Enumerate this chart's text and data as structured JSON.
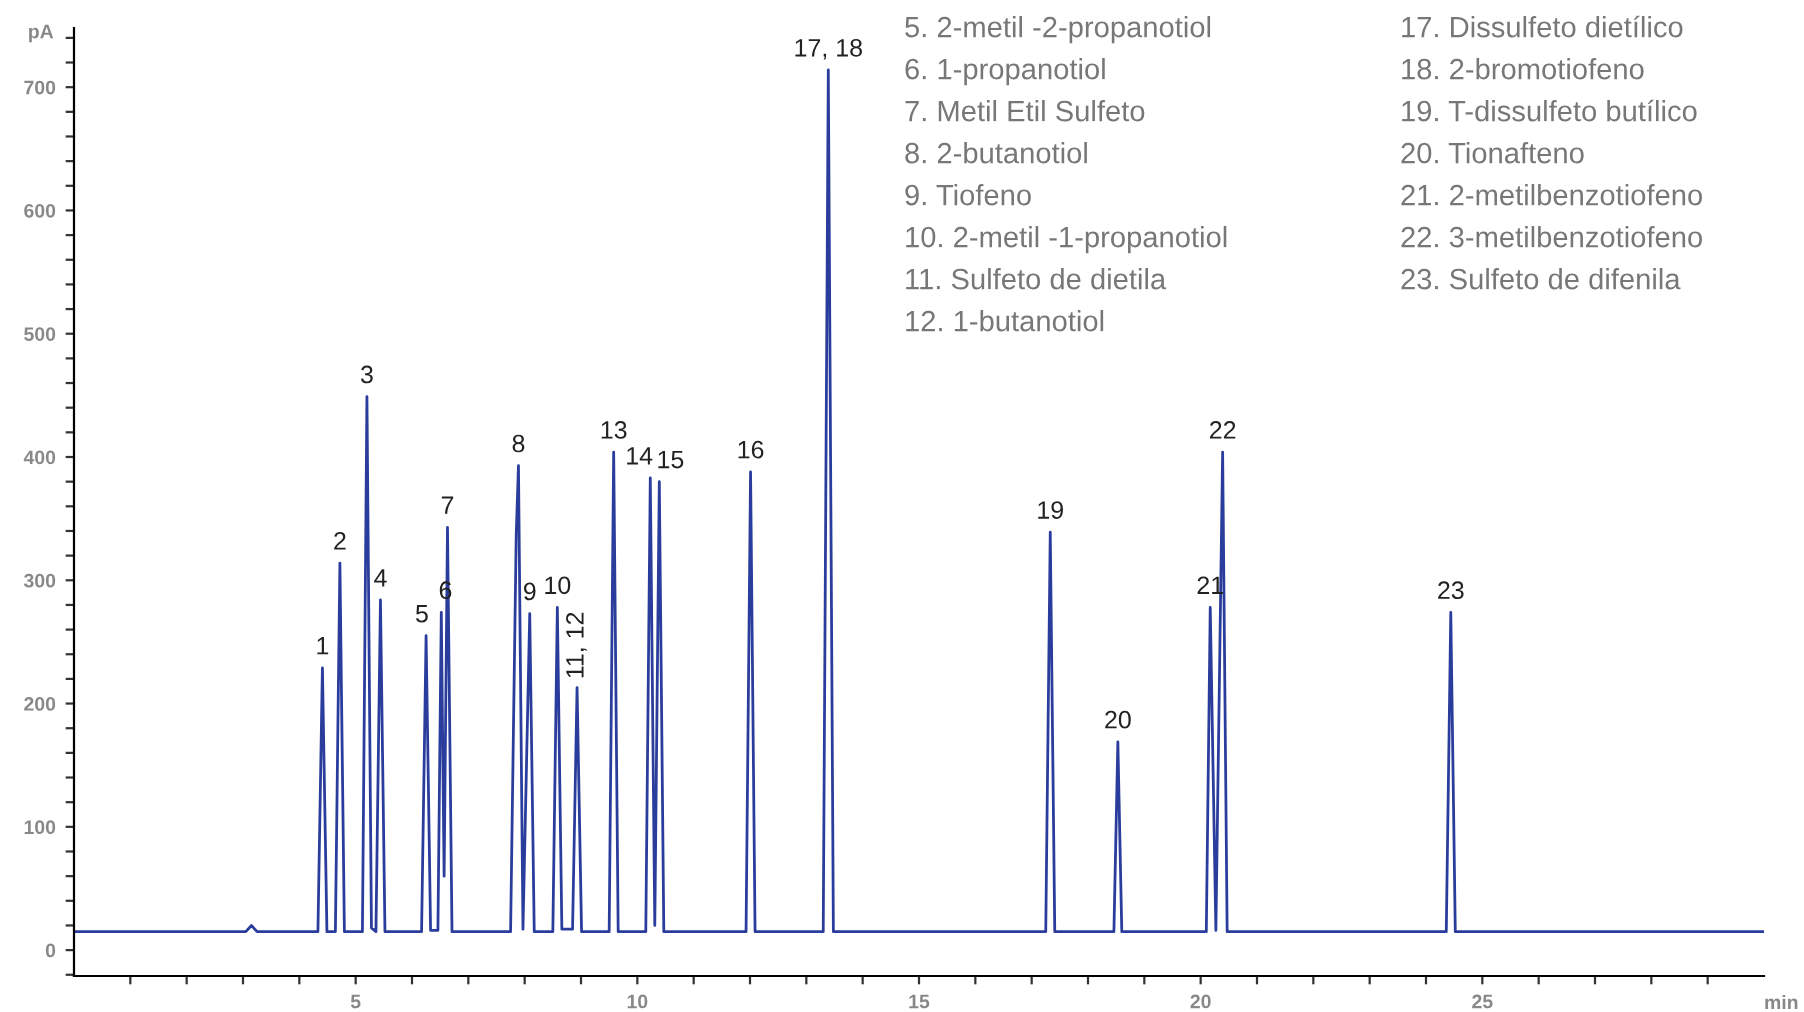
{
  "chart_data": {
    "type": "line",
    "xlabel": "min",
    "ylabel": "pA",
    "series": [
      {
        "color": "#2b3d9c",
        "x": [
          0.0,
          3.05,
          3.15,
          3.25,
          4.33,
          4.41,
          4.49,
          4.64,
          4.72,
          4.8,
          5.12,
          5.2,
          5.28,
          5.36,
          5.44,
          5.52,
          6.17,
          6.25,
          6.33,
          6.46,
          6.52,
          6.57,
          6.63,
          6.71,
          7.75,
          7.85,
          7.89,
          7.97,
          8.09,
          8.17,
          8.5,
          8.58,
          8.66,
          8.85,
          8.93,
          9.01,
          9.5,
          9.58,
          9.66,
          10.15,
          10.23,
          10.31,
          10.39,
          10.47,
          11.93,
          12.01,
          12.09,
          13.3,
          13.39,
          13.48,
          17.25,
          17.33,
          17.41,
          18.46,
          18.53,
          18.6,
          20.1,
          20.17,
          20.27,
          20.39,
          20.47,
          24.36,
          24.44,
          24.52,
          30.0
        ],
        "values": [
          15,
          15,
          20,
          15,
          15,
          229,
          15,
          15,
          314,
          15,
          15,
          449,
          18,
          15,
          284,
          15,
          15,
          255,
          16,
          16,
          274,
          60,
          343,
          15,
          15,
          337,
          393,
          17,
          273,
          15,
          15,
          278,
          17,
          17,
          213,
          15,
          15,
          404,
          15,
          15,
          383,
          20,
          380,
          15,
          15,
          388,
          15,
          15,
          714,
          15,
          15,
          339,
          15,
          15,
          169,
          15,
          15,
          278,
          16,
          404,
          15,
          15,
          274,
          15,
          15
        ]
      }
    ],
    "xlim": [
      0,
      30
    ],
    "xticks": [
      {
        "value": 1,
        "label": null
      },
      {
        "value": 2,
        "label": null
      },
      {
        "value": 3,
        "label": null
      },
      {
        "value": 4,
        "label": null
      },
      5,
      {
        "value": 6,
        "label": null
      },
      {
        "value": 7,
        "label": null
      },
      {
        "value": 8,
        "label": null
      },
      {
        "value": 9,
        "label": null
      },
      10,
      {
        "value": 11,
        "label": null
      },
      {
        "value": 12,
        "label": null
      },
      {
        "value": 13,
        "label": null
      },
      {
        "value": 14,
        "label": null
      },
      15,
      {
        "value": 16,
        "label": null
      },
      {
        "value": 17,
        "label": null
      },
      {
        "value": 18,
        "label": null
      },
      {
        "value": 19,
        "label": null
      },
      20,
      {
        "value": 21,
        "label": null
      },
      {
        "value": 22,
        "label": null
      },
      {
        "value": 23,
        "label": null
      },
      {
        "value": 24,
        "label": null
      },
      25,
      {
        "value": 26,
        "label": null
      },
      {
        "value": 27,
        "label": null
      },
      {
        "value": 28,
        "label": null
      },
      {
        "value": 29,
        "label": null
      }
    ],
    "ylim": [
      -21,
      748
    ],
    "yticks": [
      {
        "value": -20,
        "label": null
      },
      0,
      {
        "value": 20,
        "label": null
      },
      {
        "value": 40,
        "label": null
      },
      {
        "value": 60,
        "label": null
      },
      {
        "value": 80,
        "label": null
      },
      100,
      {
        "value": 120,
        "label": null
      },
      {
        "value": 140,
        "label": null
      },
      {
        "value": 160,
        "label": null
      },
      {
        "value": 180,
        "label": null
      },
      200,
      {
        "value": 220,
        "label": null
      },
      {
        "value": 240,
        "label": null
      },
      {
        "value": 260,
        "label": null
      },
      {
        "value": 280,
        "label": null
      },
      300,
      {
        "value": 320,
        "label": null
      },
      {
        "value": 340,
        "label": null
      },
      {
        "value": 360,
        "label": null
      },
      {
        "value": 380,
        "label": null
      },
      400,
      {
        "value": 420,
        "label": null
      },
      {
        "value": 440,
        "label": null
      },
      {
        "value": 460,
        "label": null
      },
      {
        "value": 480,
        "label": null
      },
      500,
      {
        "value": 520,
        "label": null
      },
      {
        "value": 540,
        "label": null
      },
      {
        "value": 560,
        "label": null
      },
      {
        "value": 580,
        "label": null
      },
      600,
      {
        "value": 620,
        "label": null
      },
      {
        "value": 640,
        "label": null
      },
      {
        "value": 660,
        "label": null
      },
      {
        "value": 680,
        "label": null
      },
      700,
      {
        "value": 720,
        "label": null
      },
      {
        "value": 740,
        "label": null
      }
    ],
    "grid": false,
    "legend": false,
    "annotations": [
      {
        "text": "1",
        "x": 4.41,
        "y": 229
      },
      {
        "text": "2",
        "x": 4.72,
        "y": 314
      },
      {
        "text": "3",
        "x": 5.2,
        "y": 449
      },
      {
        "text": "4",
        "x": 5.44,
        "y": 284
      },
      {
        "text": "5",
        "x": 6.25,
        "y": 255
      },
      {
        "text": "6",
        "x": 6.52,
        "y": 274
      },
      {
        "text": "7",
        "x": 6.63,
        "y": 343
      },
      {
        "text": "8",
        "x": 7.89,
        "y": 393
      },
      {
        "text": "9",
        "x": 8.09,
        "y": 273
      },
      {
        "text": "10",
        "x": 8.58,
        "y": 278
      },
      {
        "text": "11, 12",
        "x": 8.93,
        "y": 213
      },
      {
        "text": "13",
        "x": 9.58,
        "y": 404
      },
      {
        "text": "14",
        "x": 10.23,
        "y": 383
      },
      {
        "text": "15",
        "x": 10.39,
        "y": 380
      },
      {
        "text": "16",
        "x": 12.01,
        "y": 388
      },
      {
        "text": "17, 18",
        "x": 13.39,
        "y": 714
      },
      {
        "text": "19",
        "x": 17.33,
        "y": 339
      },
      {
        "text": "20",
        "x": 18.53,
        "y": 169
      },
      {
        "text": "21",
        "x": 20.17,
        "y": 278
      },
      {
        "text": "22",
        "x": 20.39,
        "y": 404
      },
      {
        "text": "23",
        "x": 24.44,
        "y": 274
      },
      "5. 2-metil -2-propanotiol",
      "6. 1-propanotiol",
      "7. Metil Etil Sulfeto",
      "8. 2-butanotiol",
      "9. Tiofeno",
      "10. 2-metil -1-propanotiol",
      "11. Sulfeto de dietila",
      "12. 1-butanotiol",
      "17. Dissulfeto dietílico",
      "18. 2-bromotiofeno",
      "19. T-dissulfeto butílico",
      "20. Tionafteno",
      "21. 2-metilbenzotiofeno",
      "22. 3-metilbenzotiofeno",
      "23. Sulfeto de difenila"
    ]
  }
}
